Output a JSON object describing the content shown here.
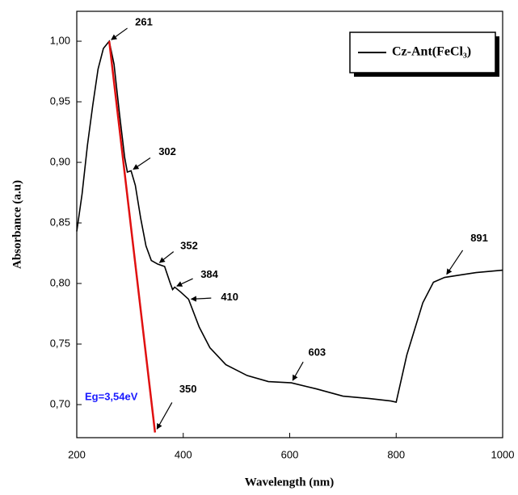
{
  "chart_data": {
    "type": "line",
    "xlabel": "Wavelength (nm)",
    "ylabel": "Absorbance (a.u)",
    "x": [
      200,
      210,
      220,
      230,
      240,
      250,
      261,
      270,
      280,
      290,
      295,
      302,
      310,
      320,
      330,
      340,
      352,
      365,
      375,
      380,
      384,
      395,
      410,
      430,
      450,
      480,
      520,
      560,
      603,
      650,
      700,
      750,
      790,
      800,
      820,
      850,
      870,
      891,
      920,
      950,
      1000
    ],
    "series": [
      {
        "name": "Cz-Ant(FeCl₃)",
        "color": "#000000",
        "values": [
          0.843,
          0.874,
          0.914,
          0.947,
          0.977,
          0.994,
          1.0,
          0.981,
          0.941,
          0.904,
          0.892,
          0.893,
          0.881,
          0.854,
          0.831,
          0.819,
          0.816,
          0.814,
          0.801,
          0.795,
          0.797,
          0.793,
          0.787,
          0.764,
          0.747,
          0.733,
          0.724,
          0.719,
          0.718,
          0.713,
          0.707,
          0.705,
          0.703,
          0.702,
          0.741,
          0.784,
          0.801,
          0.805,
          0.807,
          0.809,
          0.811
        ]
      }
    ],
    "tangent": {
      "color": "#e01010",
      "x": [
        261,
        347
      ],
      "values": [
        1.0,
        0.677
      ]
    },
    "annotations": [
      {
        "text": "261",
        "x": 261,
        "y": 1.0
      },
      {
        "text": "302",
        "x": 302,
        "y": 0.893
      },
      {
        "text": "352",
        "x": 352,
        "y": 0.816
      },
      {
        "text": "384",
        "x": 384,
        "y": 0.797
      },
      {
        "text": "410",
        "x": 410,
        "y": 0.787
      },
      {
        "text": "603",
        "x": 603,
        "y": 0.718
      },
      {
        "text": "891",
        "x": 891,
        "y": 0.805
      },
      {
        "text": "350",
        "x": 347,
        "y": 0.677
      }
    ],
    "eg_label": "Eg=3,54eV",
    "xlim": [
      200,
      1000
    ],
    "ylim": [
      0.6727,
      1.0247
    ],
    "xticks": [
      200,
      400,
      600,
      800,
      1000
    ],
    "yticks": [
      {
        "value": 0.7,
        "label": "0,70"
      },
      {
        "value": 0.75,
        "label": "0,75"
      },
      {
        "value": 0.8,
        "label": "0,80"
      },
      {
        "value": 0.85,
        "label": "0,85"
      },
      {
        "value": 0.9,
        "label": "0,90"
      },
      {
        "value": 0.95,
        "label": "0,95"
      },
      {
        "value": 1.0,
        "label": "1,00"
      }
    ],
    "legend": "upper right",
    "grid": false
  }
}
